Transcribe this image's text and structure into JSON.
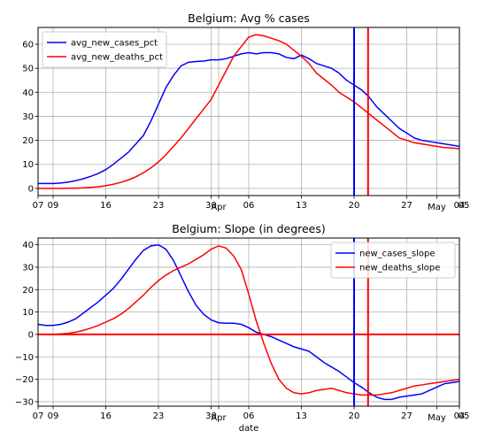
{
  "chart_data": [
    {
      "type": "line",
      "title": "Belgium: Avg % cases",
      "xlabel": "",
      "ylabel": "",
      "x_range_days": [
        0,
        28
      ],
      "ylim": [
        -3,
        67
      ],
      "yticks": [
        0,
        10,
        20,
        30,
        40,
        50,
        60
      ],
      "grid": true,
      "legend_position": "top-left",
      "series": [
        {
          "name": "avg_new_cases_pct",
          "color": "#0000ff",
          "x": [
            0,
            0.5,
            1,
            1.5,
            2,
            2.5,
            3,
            3.5,
            4,
            4.5,
            5,
            5.5,
            6,
            6.5,
            7,
            7.5,
            8,
            8.5,
            9,
            9.5,
            10,
            10.5,
            11,
            11.5,
            12,
            12.5,
            13,
            13.5,
            14,
            14.5,
            15,
            15.5,
            16,
            16.5,
            17,
            17.5,
            18,
            18.5,
            19,
            19.5,
            20,
            20.5,
            21,
            21.5,
            22,
            22.5,
            23,
            23.5,
            24,
            24.5,
            25,
            25.5,
            26,
            26.5,
            27,
            27.5,
            28
          ],
          "y": [
            2,
            2,
            2,
            2.2,
            2.6,
            3.2,
            4,
            5,
            6.2,
            7.8,
            10,
            12.5,
            15,
            18.5,
            22,
            28,
            35,
            42,
            47,
            51,
            52.5,
            52.8,
            53,
            53.5,
            53.5,
            54,
            55,
            56,
            56.5,
            56,
            56.5,
            56.5,
            56,
            54.5,
            54,
            55.5,
            54,
            52,
            51,
            50,
            48,
            45,
            43,
            41,
            38,
            34,
            31,
            28,
            25,
            23,
            21,
            20,
            19.5,
            19,
            18.5,
            18,
            17.5
          ]
        },
        {
          "name": "avg_new_deaths_pct",
          "color": "#ff0000",
          "x": [
            0,
            0.5,
            1,
            1.5,
            2,
            2.5,
            3,
            3.5,
            4,
            4.5,
            5,
            5.5,
            6,
            6.5,
            7,
            7.5,
            8,
            8.5,
            9,
            9.5,
            10,
            10.5,
            11,
            11.5,
            12,
            12.5,
            13,
            13.5,
            14,
            14.5,
            15,
            15.5,
            16,
            16.5,
            17,
            17.5,
            18,
            18.5,
            19,
            19.5,
            20,
            20.5,
            21,
            21.5,
            22,
            22.5,
            23,
            23.5,
            24,
            24.5,
            25,
            25.5,
            26,
            26.5,
            27,
            27.5,
            28
          ],
          "y": [
            0,
            0,
            0,
            0,
            0.1,
            0.1,
            0.2,
            0.4,
            0.7,
            1.1,
            1.7,
            2.5,
            3.5,
            4.8,
            6.5,
            8.5,
            11,
            14,
            17.5,
            21,
            25,
            29,
            33,
            37,
            43,
            49,
            55,
            59,
            63,
            64,
            63.5,
            62.5,
            61.5,
            60,
            57.5,
            55,
            52,
            48,
            45.5,
            43,
            40,
            38,
            36,
            33.5,
            31,
            28.5,
            26,
            23.5,
            21,
            20,
            19,
            18.5,
            18,
            17.5,
            17,
            16.8,
            16.5
          ]
        }
      ],
      "vlines": [
        {
          "x": 21,
          "color": "#0000ff"
        },
        {
          "x": 21.93,
          "color": "#ff0000"
        }
      ]
    },
    {
      "type": "line",
      "title": "Belgium: Slope (in degrees)",
      "xlabel": "date",
      "ylabel": "",
      "x_range_days": [
        0,
        28
      ],
      "ylim": [
        -32,
        43
      ],
      "yticks": [
        -30,
        -20,
        -10,
        0,
        10,
        20,
        30,
        40
      ],
      "grid": true,
      "legend_position": "top-right",
      "series": [
        {
          "name": "new_cases_slope",
          "color": "#0000ff",
          "x": [
            0,
            0.5,
            1,
            1.5,
            2,
            2.5,
            3,
            3.5,
            4,
            4.5,
            5,
            5.5,
            6,
            6.5,
            7,
            7.5,
            8,
            8.5,
            9,
            9.5,
            10,
            10.5,
            11,
            11.5,
            12,
            12.5,
            13,
            13.5,
            14,
            14.5,
            15,
            15.5,
            16,
            16.5,
            17,
            17.5,
            18,
            18.5,
            19,
            19.5,
            20,
            20.5,
            21,
            21.5,
            22,
            22.5,
            23,
            23.5,
            24,
            24.5,
            25,
            25.5,
            26,
            26.5,
            27,
            27.5,
            28
          ],
          "y": [
            4.5,
            4,
            4,
            4.5,
            5.5,
            7,
            9.5,
            12,
            14.5,
            17.5,
            20.5,
            24.5,
            29,
            33.5,
            37.5,
            39.5,
            40,
            38,
            33,
            26,
            19,
            13,
            9,
            6.5,
            5.2,
            5,
            5,
            4.5,
            3,
            1,
            0,
            -1,
            -2.5,
            -4,
            -5.5,
            -6.5,
            -7.5,
            -10,
            -12.5,
            -14.5,
            -16.5,
            -19,
            -21.5,
            -23.5,
            -26,
            -28,
            -29,
            -29,
            -28,
            -27.5,
            -27,
            -26.5,
            -25,
            -23.5,
            -22,
            -21.5,
            -21
          ]
        },
        {
          "name": "new_deaths_slope",
          "color": "#ff0000",
          "x": [
            0,
            0.5,
            1,
            1.5,
            2,
            2.5,
            3,
            3.5,
            4,
            4.5,
            5,
            5.5,
            6,
            6.5,
            7,
            7.5,
            8,
            8.5,
            9,
            9.5,
            10,
            10.5,
            11,
            11.5,
            12,
            12.5,
            13,
            13.5,
            14,
            14.5,
            15,
            15.5,
            16,
            16.5,
            17,
            17.5,
            18,
            18.5,
            19,
            19.5,
            20,
            20.5,
            21,
            21.5,
            22,
            22.5,
            23,
            23.5,
            24,
            24.5,
            25,
            25.5,
            26,
            26.5,
            27,
            27.5,
            28
          ],
          "y": [
            0,
            0,
            0,
            0.2,
            0.5,
            1,
            1.8,
            2.8,
            4,
            5.5,
            7,
            9,
            11.5,
            14.5,
            17.5,
            21,
            24,
            26.5,
            28.5,
            30,
            31.5,
            33.5,
            35.5,
            38,
            39.5,
            38.5,
            35,
            29,
            18,
            6,
            -4,
            -13,
            -20,
            -24,
            -26,
            -26.5,
            -26,
            -25,
            -24.5,
            -24,
            -25,
            -26,
            -26.5,
            -27,
            -27,
            -27,
            -26.5,
            -26,
            -25,
            -24,
            -23,
            -22.5,
            -22,
            -21.5,
            -21,
            -20.5,
            -20
          ]
        }
      ],
      "vlines": [
        {
          "x": 21,
          "color": "#0000ff"
        },
        {
          "x": 21.93,
          "color": "#ff0000"
        }
      ],
      "hlines": [
        {
          "y": 0,
          "color": "#ff0000"
        }
      ]
    }
  ],
  "x_ticks": [
    {
      "x": 0,
      "label": "07"
    },
    {
      "x": 1,
      "label": "09"
    },
    {
      "x": 4.5,
      "label": "16"
    },
    {
      "x": 8,
      "label": "23"
    },
    {
      "x": 11.5,
      "label": "30"
    },
    {
      "x": 12,
      "label": "Apr"
    },
    {
      "x": 14,
      "label": "06"
    },
    {
      "x": 17.5,
      "label": "13"
    },
    {
      "x": 21,
      "label": "20"
    },
    {
      "x": 24.5,
      "label": "27"
    },
    {
      "x": 26.5,
      "label": "May"
    },
    {
      "x": 28,
      "label": "04"
    },
    {
      "x": 28.5,
      "label": "05"
    }
  ]
}
